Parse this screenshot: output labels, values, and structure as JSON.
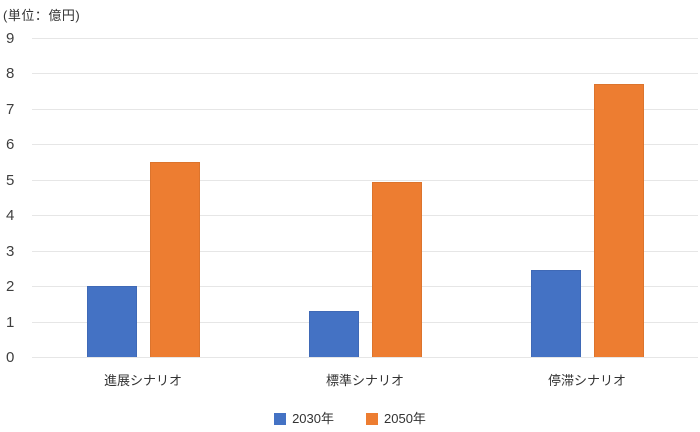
{
  "chart_data": {
    "type": "bar",
    "title": "",
    "unit_label": "(単位：億円)",
    "categories": [
      "進展シナリオ",
      "標準シナリオ",
      "停滞シナリオ"
    ],
    "series": [
      {
        "name": "2030年",
        "color": "#4472C4",
        "values": [
          2.0,
          1.3,
          2.45
        ]
      },
      {
        "name": "2050年",
        "color": "#ED7D31",
        "values": [
          5.5,
          4.95,
          7.7
        ]
      }
    ],
    "ylabel": "",
    "xlabel": "",
    "ylim": [
      0,
      9
    ],
    "y_ticks": [
      0,
      1,
      2,
      3,
      4,
      5,
      6,
      7,
      8,
      9
    ],
    "grid": true,
    "legend_position": "bottom",
    "colors": {
      "gridline": "#e6e6e6",
      "axis_text": "#3f3f3f",
      "label_text": "#333333",
      "background": "#ffffff"
    }
  }
}
